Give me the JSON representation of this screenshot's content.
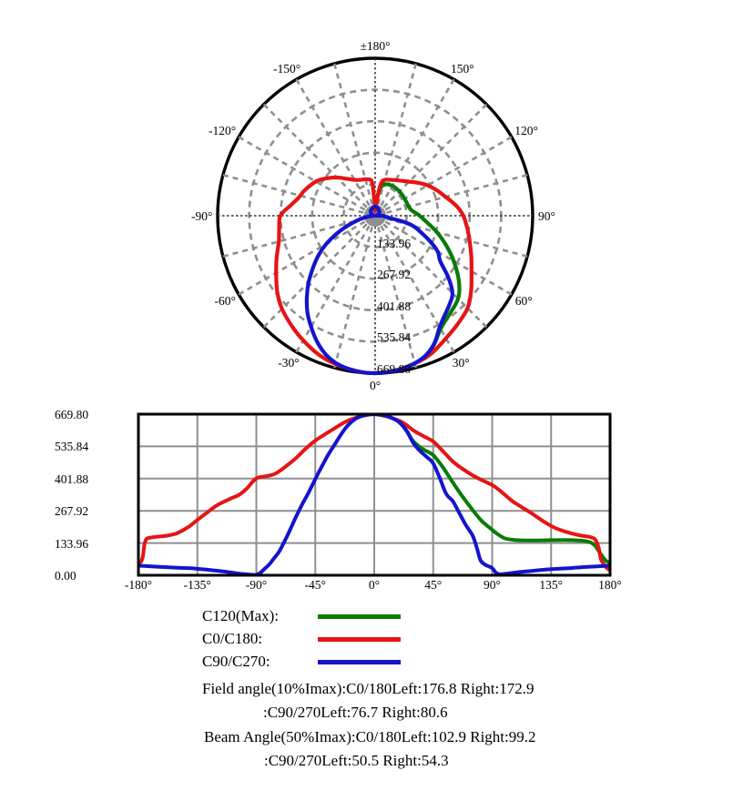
{
  "page": {
    "background": "#ffffff",
    "text_color": "#000000"
  },
  "colors": {
    "green": "#077c07",
    "red": "#e61414",
    "blue": "#1414ce",
    "grid_gray": "#8f8f8f",
    "axis_dark": "#303030",
    "frame_black": "#000000",
    "hub_gray": "#8f8f8f"
  },
  "chart_data": {
    "series": [
      {
        "name": "C120(Max)",
        "color": "#077c07",
        "points": [
          [
            0,
            669.8
          ],
          [
            6,
            665
          ],
          [
            12,
            656
          ],
          [
            18,
            641
          ],
          [
            24,
            607
          ],
          [
            30,
            556
          ],
          [
            37,
            525
          ],
          [
            45,
            499
          ],
          [
            52,
            452
          ],
          [
            60,
            386
          ],
          [
            67,
            330
          ],
          [
            75,
            272
          ],
          [
            82,
            226
          ],
          [
            90,
            189
          ],
          [
            95,
            168
          ],
          [
            100,
            153
          ],
          [
            107,
            147
          ],
          [
            115,
            145
          ],
          [
            125,
            145
          ],
          [
            135,
            146
          ],
          [
            145,
            147
          ],
          [
            152,
            146
          ],
          [
            158,
            144
          ],
          [
            163,
            140
          ],
          [
            166,
            134
          ],
          [
            169,
            120
          ],
          [
            172,
            95
          ],
          [
            175,
            72
          ],
          [
            177.5,
            58
          ],
          [
            180,
            50
          ]
        ]
      },
      {
        "name": "C0/C180",
        "color": "#e61414",
        "points": [
          [
            -180,
            47
          ],
          [
            -178,
            56
          ],
          [
            -176.5,
            80
          ],
          [
            -175.5,
            125
          ],
          [
            -174,
            150
          ],
          [
            -172,
            155
          ],
          [
            -170,
            157
          ],
          [
            -165,
            161
          ],
          [
            -160,
            163
          ],
          [
            -155,
            168
          ],
          [
            -150,
            176
          ],
          [
            -142,
            200
          ],
          [
            -135,
            230
          ],
          [
            -127,
            263
          ],
          [
            -120,
            291
          ],
          [
            -110,
            318
          ],
          [
            -103,
            335
          ],
          [
            -97,
            362
          ],
          [
            -90,
            403
          ],
          [
            -82,
            412
          ],
          [
            -75,
            424
          ],
          [
            -67,
            455
          ],
          [
            -60,
            486
          ],
          [
            -52,
            528
          ],
          [
            -45,
            560
          ],
          [
            -37,
            588
          ],
          [
            -30,
            612
          ],
          [
            -22,
            638
          ],
          [
            -15,
            653
          ],
          [
            -7,
            665
          ],
          [
            0,
            669.8
          ],
          [
            7,
            665
          ],
          [
            15,
            651
          ],
          [
            22,
            634
          ],
          [
            30,
            602
          ],
          [
            37,
            580
          ],
          [
            45,
            556
          ],
          [
            52,
            518
          ],
          [
            60,
            473
          ],
          [
            67,
            444
          ],
          [
            75,
            416
          ],
          [
            82,
            396
          ],
          [
            90,
            375
          ],
          [
            95,
            356
          ],
          [
            100,
            333
          ],
          [
            105,
            310
          ],
          [
            112,
            285
          ],
          [
            120,
            258
          ],
          [
            127,
            232
          ],
          [
            135,
            205
          ],
          [
            142,
            188
          ],
          [
            150,
            175
          ],
          [
            155,
            168
          ],
          [
            160,
            163
          ],
          [
            164,
            160
          ],
          [
            168,
            152
          ],
          [
            170,
            135
          ],
          [
            171.5,
            110
          ],
          [
            173,
            67
          ],
          [
            175,
            48
          ],
          [
            177,
            33
          ],
          [
            180,
            20
          ]
        ]
      },
      {
        "name": "C90/C270",
        "color": "#1414ce",
        "points": [
          [
            -180,
            40
          ],
          [
            -170,
            37
          ],
          [
            -160,
            34
          ],
          [
            -150,
            31
          ],
          [
            -140,
            29
          ],
          [
            -135,
            27
          ],
          [
            -125,
            22
          ],
          [
            -115,
            16
          ],
          [
            -105,
            8
          ],
          [
            -98,
            4
          ],
          [
            -93,
            2
          ],
          [
            -90,
            2
          ],
          [
            -87,
            10
          ],
          [
            -84,
            25
          ],
          [
            -80,
            46
          ],
          [
            -77,
            67
          ],
          [
            -73,
            95
          ],
          [
            -69,
            135
          ],
          [
            -65,
            180
          ],
          [
            -60,
            240
          ],
          [
            -55,
            295
          ],
          [
            -50,
            345
          ],
          [
            -45,
            400
          ],
          [
            -40,
            452
          ],
          [
            -35,
            502
          ],
          [
            -30,
            545
          ],
          [
            -25,
            588
          ],
          [
            -20,
            624
          ],
          [
            -15,
            648
          ],
          [
            -10,
            661
          ],
          [
            -5,
            668
          ],
          [
            0,
            669.8
          ],
          [
            5,
            668
          ],
          [
            10,
            662
          ],
          [
            15,
            650
          ],
          [
            20,
            632
          ],
          [
            25,
            597
          ],
          [
            30,
            548
          ],
          [
            35,
            516
          ],
          [
            40,
            492
          ],
          [
            45,
            465
          ],
          [
            50,
            405
          ],
          [
            55,
            338
          ],
          [
            60,
            308
          ],
          [
            65,
            258
          ],
          [
            70,
            208
          ],
          [
            75,
            166
          ],
          [
            78,
            120
          ],
          [
            81,
            64
          ],
          [
            84,
            46
          ],
          [
            87,
            38
          ],
          [
            90,
            30
          ],
          [
            93,
            10
          ],
          [
            96,
            4
          ],
          [
            100,
            6
          ],
          [
            110,
            13
          ],
          [
            120,
            18
          ],
          [
            130,
            23
          ],
          [
            140,
            27
          ],
          [
            150,
            30
          ],
          [
            160,
            34
          ],
          [
            170,
            37
          ],
          [
            180,
            40
          ]
        ]
      }
    ],
    "polar": {
      "type": "polar-line",
      "rmax": 669.8,
      "spoke_step_deg": 15,
      "angle_ticks": [
        {
          "label": "±180°",
          "deg": 180
        },
        {
          "label": "150°",
          "deg": 150
        },
        {
          "label": "120°",
          "deg": 120
        },
        {
          "label": "90°",
          "deg": 90
        },
        {
          "label": "60°",
          "deg": 60
        },
        {
          "label": "30°",
          "deg": 30
        },
        {
          "label": "0°",
          "deg": 0
        },
        {
          "label": "-30°",
          "deg": -30
        },
        {
          "label": "-60°",
          "deg": -60
        },
        {
          "label": "-90°",
          "deg": -90
        },
        {
          "label": "-120°",
          "deg": -120
        },
        {
          "label": "-150°",
          "deg": -150
        }
      ],
      "ring_ticks": [
        {
          "label": "133.96",
          "value": 133.96
        },
        {
          "label": "267.92",
          "value": 267.92
        },
        {
          "label": "401.88",
          "value": 401.88
        },
        {
          "label": "535.84",
          "value": 535.84
        },
        {
          "label": "669.80",
          "value": 669.8
        }
      ]
    },
    "cartesian": {
      "type": "line",
      "xlim": [
        -180,
        180
      ],
      "ylim": [
        0,
        669.8
      ],
      "grid": true,
      "x_ticks": [
        {
          "label": "-180°",
          "value": -180
        },
        {
          "label": "-135°",
          "value": -135
        },
        {
          "label": "-90°",
          "value": -90
        },
        {
          "label": "-45°",
          "value": -45
        },
        {
          "label": "0°",
          "value": 0
        },
        {
          "label": "45°",
          "value": 45
        },
        {
          "label": "90°",
          "value": 90
        },
        {
          "label": "135°",
          "value": 135
        },
        {
          "label": "180°",
          "value": 180
        }
      ],
      "y_ticks": [
        {
          "label": "0.00",
          "value": 0
        },
        {
          "label": "133.96",
          "value": 133.96
        },
        {
          "label": "267.92",
          "value": 267.92
        },
        {
          "label": "401.88",
          "value": 401.88
        },
        {
          "label": "535.84",
          "value": 535.84
        },
        {
          "label": "669.80",
          "value": 669.8
        }
      ]
    }
  },
  "legend": {
    "items": [
      {
        "label": "C120(Max):",
        "color": "#077c07"
      },
      {
        "label": "C0/C180:",
        "color": "#e61414"
      },
      {
        "label": "C90/C270:",
        "color": "#1414ce"
      }
    ]
  },
  "summary": {
    "lines": [
      {
        "text": "Field angle(10%Imax):C0/180Left:176.8 Right:172.9"
      },
      {
        "text": ":C90/270Left:76.7 Right:80.6"
      },
      {
        "text": "Beam Angle(50%Imax):C0/180Left:102.9 Right:99.2"
      },
      {
        "text": ":C90/270Left:50.5 Right:54.3"
      }
    ]
  }
}
